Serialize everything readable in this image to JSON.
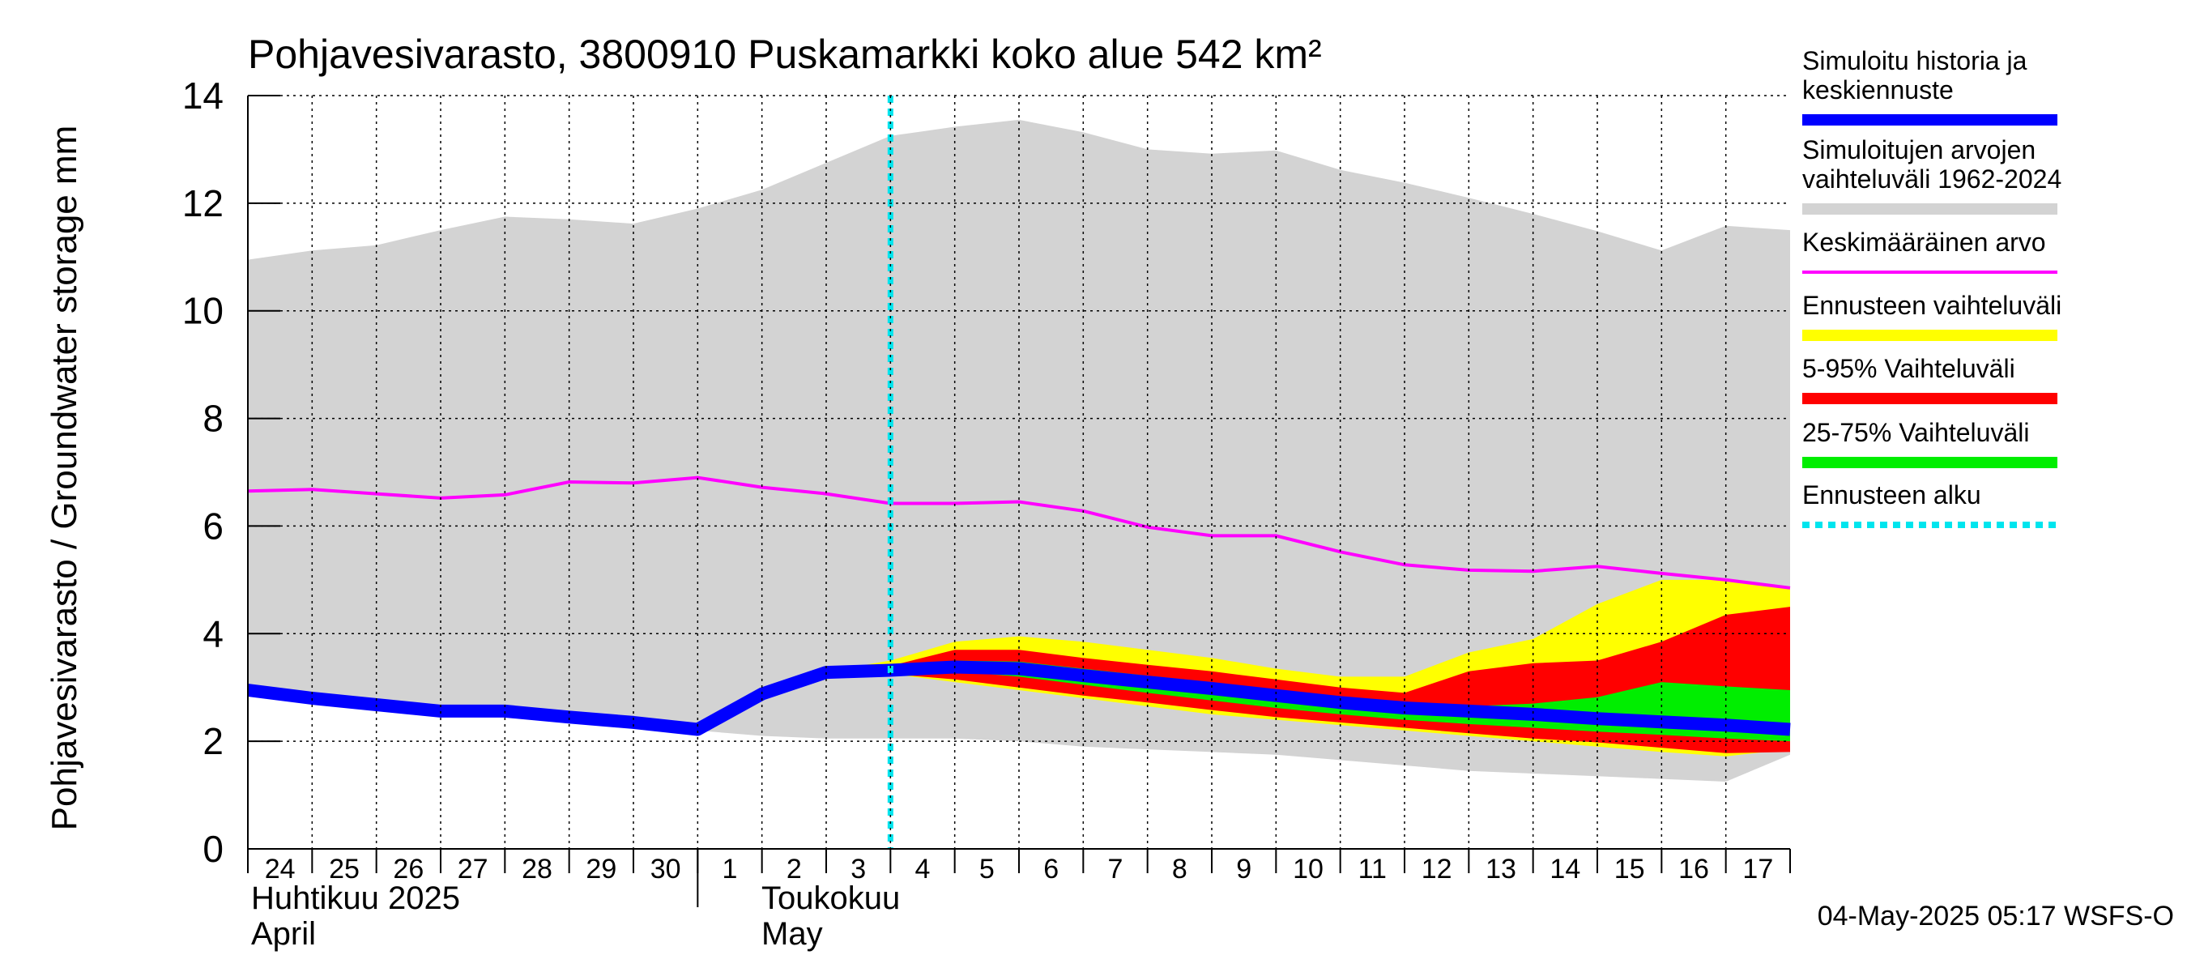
{
  "chart_data": {
    "type": "area",
    "title": "Pohjavesivarasto, 3800910 Puskamarkki koko alue 542 km²",
    "ylabel": "Pohjavesivarasto / Groundwater storage   mm",
    "ylim": [
      0,
      14
    ],
    "yticks": [
      "0",
      "2",
      "4",
      "6",
      "8",
      "10",
      "12",
      "14"
    ],
    "xlim": [
      0,
      24
    ],
    "xticks": [
      "24",
      "25",
      "26",
      "27",
      "28",
      "29",
      "30",
      "1",
      "2",
      "3",
      "4",
      "5",
      "6",
      "7",
      "8",
      "9",
      "10",
      "11",
      "12",
      "13",
      "14",
      "15",
      "16",
      "17"
    ],
    "month_labels": [
      {
        "fi": "Huhtikuu  2025",
        "en": "April"
      },
      {
        "fi": "Toukokuu",
        "en": "May"
      }
    ],
    "footer": "04-May-2025 05:17 WSFS-O",
    "forecast_start_x": 10,
    "grid": true,
    "colors": {
      "history_range": "#d3d3d3",
      "mean": "#ff00ff",
      "simulated": "#0000ff",
      "forecast_range": "#ffff00",
      "p5_95": "#ff0000",
      "p25_75": "#00ee00",
      "forecast_start": "#00e5ee"
    },
    "legend": [
      {
        "label": "Simuloitu historia ja keskiennuste",
        "color": "#0000ff",
        "style": "solid"
      },
      {
        "label": "Simuloitujen arvojen vaihteluväli 1962-2024",
        "color": "#d3d3d3",
        "style": "solid"
      },
      {
        "label": "Keskimääräinen arvo",
        "color": "#ff00ff",
        "style": "thin"
      },
      {
        "label": "Ennusteen vaihteluväli",
        "color": "#ffff00",
        "style": "solid"
      },
      {
        "label": "5-95% Vaihteluväli",
        "color": "#ff0000",
        "style": "solid"
      },
      {
        "label": "25-75% Vaihteluväli",
        "color": "#00ee00",
        "style": "solid"
      },
      {
        "label": "Ennusteen alku",
        "color": "#00e5ee",
        "style": "dotted"
      }
    ],
    "series": {
      "history_range": {
        "x": [
          0,
          1,
          2,
          3,
          4,
          5,
          6,
          7,
          8,
          9,
          10,
          11,
          12,
          13,
          14,
          15,
          16,
          17,
          18,
          19,
          20,
          21,
          22,
          23,
          24
        ],
        "high": [
          10.95,
          11.12,
          11.22,
          11.5,
          11.75,
          11.7,
          11.62,
          11.9,
          12.25,
          12.75,
          13.25,
          13.42,
          13.55,
          13.32,
          13.0,
          12.92,
          12.98,
          12.62,
          12.38,
          12.1,
          11.8,
          11.48,
          11.12,
          11.58,
          11.5
        ],
        "low": [
          2.9,
          2.8,
          2.65,
          2.5,
          2.45,
          2.4,
          2.3,
          2.2,
          2.1,
          2.05,
          2.05,
          2.05,
          2.0,
          1.9,
          1.85,
          1.8,
          1.75,
          1.65,
          1.55,
          1.45,
          1.4,
          1.35,
          1.3,
          1.25,
          1.75
        ]
      },
      "mean": {
        "x": [
          0,
          1,
          2,
          3,
          4,
          5,
          6,
          7,
          8,
          9,
          10,
          11,
          12,
          13,
          14,
          15,
          16,
          17,
          18,
          19,
          20,
          21,
          22,
          23,
          24
        ],
        "y": [
          6.65,
          6.68,
          6.6,
          6.52,
          6.58,
          6.82,
          6.8,
          6.9,
          6.72,
          6.6,
          6.42,
          6.42,
          6.45,
          6.28,
          5.98,
          5.82,
          5.82,
          5.52,
          5.28,
          5.18,
          5.16,
          5.25,
          5.12,
          5.0,
          4.85
        ]
      },
      "forecast_range": {
        "x": [
          9,
          10,
          11,
          12,
          13,
          14,
          15,
          16,
          17,
          18,
          19,
          20,
          21,
          22,
          23,
          24
        ],
        "high": [
          3.3,
          3.5,
          3.85,
          3.95,
          3.85,
          3.7,
          3.55,
          3.35,
          3.2,
          3.2,
          3.65,
          3.9,
          4.55,
          5.0,
          5.0,
          4.85
        ],
        "low": [
          3.3,
          3.25,
          3.1,
          2.95,
          2.8,
          2.65,
          2.5,
          2.4,
          2.3,
          2.2,
          2.1,
          2.0,
          1.9,
          1.8,
          1.72,
          1.85
        ]
      },
      "p5_95": {
        "x": [
          9,
          10,
          11,
          12,
          13,
          14,
          15,
          16,
          17,
          18,
          19,
          20,
          21,
          22,
          23,
          24
        ],
        "high": [
          3.3,
          3.4,
          3.7,
          3.7,
          3.55,
          3.42,
          3.3,
          3.15,
          3.0,
          2.9,
          3.3,
          3.45,
          3.5,
          3.85,
          4.35,
          4.5
        ],
        "low": [
          3.3,
          3.25,
          3.15,
          3.0,
          2.85,
          2.72,
          2.58,
          2.45,
          2.35,
          2.25,
          2.15,
          2.05,
          1.98,
          1.88,
          1.78,
          1.8
        ]
      },
      "p25_75": {
        "x": [
          9,
          10,
          11,
          12,
          13,
          14,
          15,
          16,
          17,
          18,
          19,
          20,
          21,
          22,
          23,
          24
        ],
        "high": [
          3.3,
          3.35,
          3.5,
          3.48,
          3.35,
          3.22,
          3.1,
          2.96,
          2.82,
          2.72,
          2.65,
          2.7,
          2.82,
          3.1,
          3.02,
          2.95
        ],
        "low": [
          3.3,
          3.3,
          3.3,
          3.2,
          3.05,
          2.9,
          2.76,
          2.62,
          2.5,
          2.4,
          2.32,
          2.25,
          2.18,
          2.12,
          2.05,
          2.0
        ]
      },
      "simulated": {
        "x": [
          0,
          1,
          2,
          3,
          4,
          5,
          6,
          7,
          8,
          9,
          10,
          11,
          12,
          13,
          14,
          15,
          16,
          17,
          18,
          19,
          20,
          21,
          22,
          23,
          24
        ],
        "y": [
          2.95,
          2.8,
          2.68,
          2.56,
          2.56,
          2.45,
          2.35,
          2.22,
          2.88,
          3.28,
          3.32,
          3.38,
          3.35,
          3.22,
          3.1,
          2.98,
          2.85,
          2.72,
          2.62,
          2.56,
          2.5,
          2.42,
          2.36,
          2.3,
          2.22
        ]
      }
    }
  }
}
